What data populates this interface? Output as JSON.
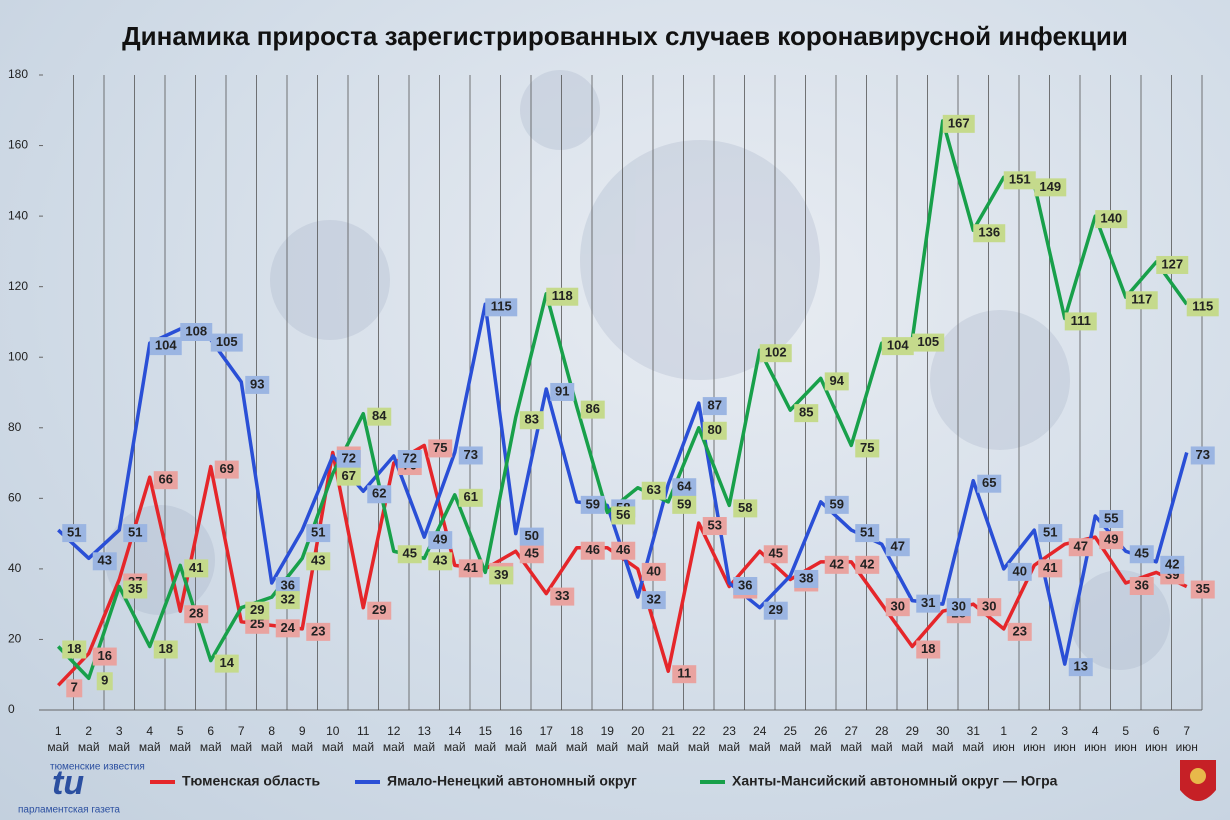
{
  "chart_data": {
    "type": "line",
    "title": "Динамика прироста зарегистрированных случаев коронавирусной инфекции",
    "categories": [
      "1\nмай",
      "2\nмай",
      "3\nмай",
      "4\nмай",
      "5\nмай",
      "6\nмай",
      "7\nмай",
      "8\nмай",
      "9\nмай",
      "10\nмай",
      "11\nмай",
      "12\nмай",
      "13\nмай",
      "14\nмай",
      "15\nмай",
      "16\nмай",
      "17\nмай",
      "18\nмай",
      "19\nмай",
      "20\nмай",
      "21\nмай",
      "22\nмай",
      "23\nмай",
      "24\nмай",
      "25\nмай",
      "26\nмай",
      "27\nмай",
      "28\nмай",
      "29\nмай",
      "30\nмай",
      "31\nмай",
      "1\nиюн",
      "2\nиюн",
      "3\nиюн",
      "4\nиюн",
      "5\nиюн",
      "6\nиюн",
      "7\nиюн"
    ],
    "series": [
      {
        "name": "Тюменская область",
        "color": "#e5262a",
        "label_color": "#e9a3a0",
        "values": [
          7,
          16,
          37,
          66,
          28,
          69,
          25,
          24,
          23,
          73,
          29,
          70,
          75,
          41,
          40,
          45,
          33,
          46,
          46,
          40,
          11,
          53,
          35,
          45,
          37,
          42,
          42,
          30,
          18,
          28,
          30,
          23,
          41,
          47,
          49,
          36,
          39,
          35
        ]
      },
      {
        "name": "Ямало-Ненецкий автономный округ",
        "color": "#2a4fd6",
        "label_color": "#9bb5e2",
        "values": [
          51,
          43,
          51,
          104,
          108,
          105,
          93,
          36,
          51,
          72,
          62,
          72,
          49,
          73,
          115,
          50,
          91,
          59,
          58,
          32,
          64,
          87,
          36,
          29,
          38,
          59,
          51,
          47,
          31,
          30,
          65,
          40,
          51,
          13,
          55,
          45,
          42,
          73
        ]
      },
      {
        "name": "Ханты-Мансийский автономный округ — Югра",
        "color": "#18a04a",
        "label_color": "#c5da8c",
        "values": [
          18,
          9,
          35,
          18,
          41,
          14,
          29,
          32,
          43,
          67,
          84,
          45,
          43,
          61,
          39,
          83,
          118,
          86,
          56,
          63,
          59,
          80,
          58,
          102,
          85,
          94,
          75,
          104,
          105,
          167,
          136,
          151,
          149,
          111,
          140,
          117,
          127,
          115
        ]
      }
    ],
    "ylim": [
      0,
      180
    ],
    "yticks": [
      0,
      20,
      40,
      60,
      80,
      100,
      120,
      140,
      160,
      180
    ],
    "grid": true,
    "logo": {
      "top": "тюменские известия",
      "mark": "tu",
      "bottom": "парламентская газета"
    }
  }
}
